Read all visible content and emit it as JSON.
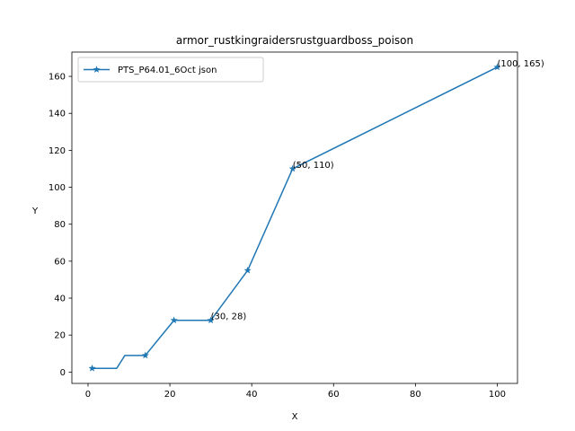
{
  "chart_data": {
    "type": "line",
    "title": "armor_rustkingraidersrustguardboss_poison",
    "xlabel": "X",
    "ylabel": "Y",
    "xlim": [
      -3.95,
      104.95
    ],
    "ylim": [
      -6.15,
      173.15
    ],
    "x_ticks": [
      0,
      20,
      40,
      60,
      80,
      100
    ],
    "y_ticks": [
      0,
      20,
      40,
      60,
      80,
      100,
      120,
      140,
      160
    ],
    "grid": false,
    "legend_position": "upper left",
    "series": [
      {
        "name": "PTS_P64.01_6Oct json",
        "color": "#1f77b4",
        "marker": "star",
        "x": [
          1,
          7,
          9,
          14,
          21,
          30,
          39,
          50,
          100
        ],
        "y": [
          2,
          2,
          9,
          9,
          28,
          28,
          55,
          110,
          165
        ],
        "marker_x": [
          1,
          14,
          21,
          30,
          39,
          50,
          100
        ],
        "marker_y": [
          2,
          9,
          28,
          28,
          55,
          110,
          165
        ]
      }
    ],
    "annotations": [
      {
        "text": "(30, 28)",
        "x": 30,
        "y": 28
      },
      {
        "text": "(50, 110)",
        "x": 50,
        "y": 110
      },
      {
        "text": "(100, 165)",
        "x": 100,
        "y": 165
      }
    ]
  }
}
